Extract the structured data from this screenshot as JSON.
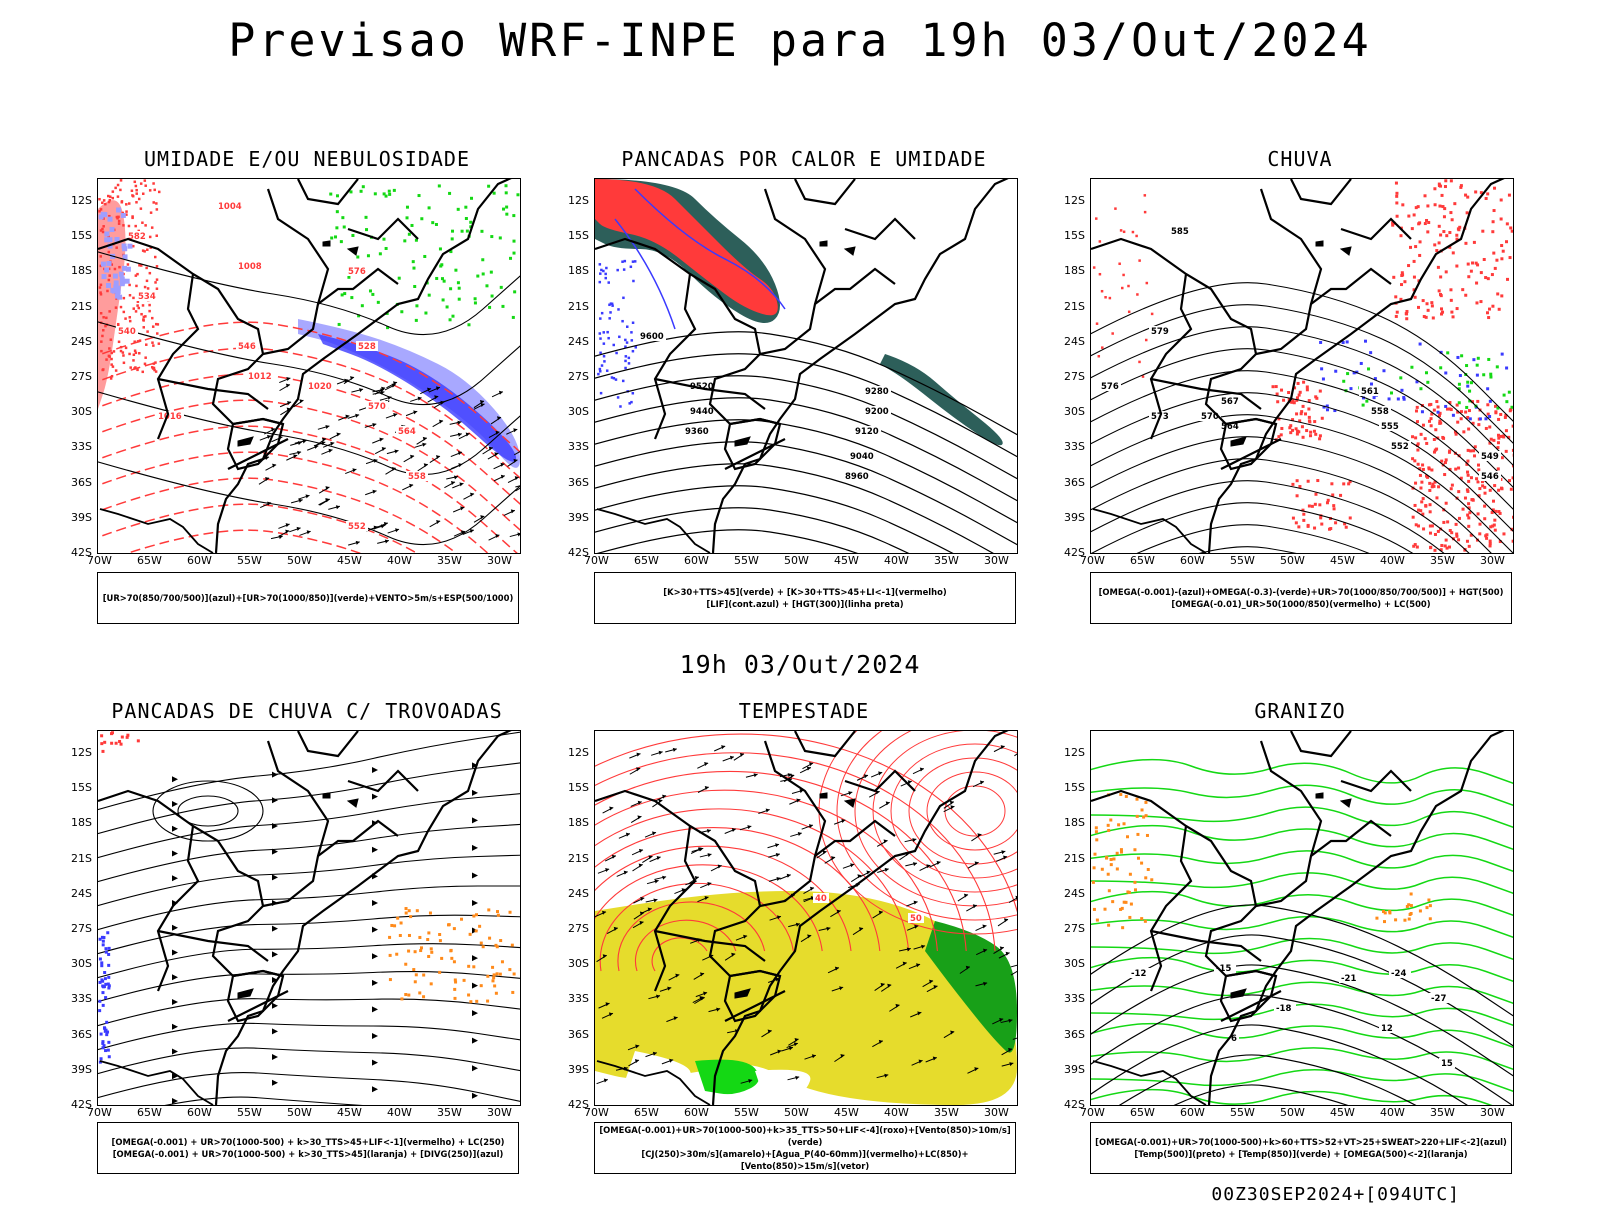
{
  "header": {
    "title": "Previsao WRF-INPE  para 19h 03/Out/2024",
    "subtitle": "19h 03/Out/2024",
    "footer": "00Z30SEP2024+[094UTC]"
  },
  "axes": {
    "lat_labels": [
      "12S",
      "15S",
      "18S",
      "21S",
      "24S",
      "27S",
      "30S",
      "33S",
      "36S",
      "39S",
      "42S"
    ],
    "lon_labels": [
      "70W",
      "65W",
      "60W",
      "55W",
      "50W",
      "45W",
      "40W",
      "35W",
      "30W"
    ]
  },
  "colors": {
    "blue": "#3a3aff",
    "lavender": "#9e9eff",
    "green": "#14d814",
    "red": "#ff3a3a",
    "dark_teal": "#2d5f5a",
    "orange": "#ff8a1a",
    "yellow": "#e6dc2c",
    "dark_green": "#18a018"
  },
  "panels": [
    {
      "id": "umidade",
      "title": "UMIDADE E/OU NEBULOSIDADE",
      "legend": [
        "[UR>70(850/700/500)](azul)+[UR>70(1000/850)](verde)+VENTO>5m/s+ESP(500/1000)"
      ],
      "contour_labels": [
        "1004",
        "1008",
        "1012",
        "1016",
        "1020",
        "570",
        "564",
        "558",
        "552",
        "546",
        "540",
        "534",
        "528",
        "576",
        "582"
      ]
    },
    {
      "id": "pancadas-calor",
      "title": "PANCADAS POR CALOR E UMIDADE",
      "legend": [
        "[K>30+TTS>45](verde) + [K>30+TTS>45+LI<-1](vermelho)",
        "[LIF](cont.azul) + [HGT(300)](linha preta)"
      ],
      "contour_labels": [
        "9600",
        "9520",
        "9440",
        "9360",
        "9280",
        "9200",
        "9120",
        "9040",
        "8960"
      ]
    },
    {
      "id": "chuva",
      "title": "CHUVA",
      "legend": [
        "[OMEGA(-0.001)-(azul)+OMEGA(-0.3)-(verde)+UR>70(1000/850/700/500)] + HGT(500)",
        "[OMEGA(-0.01)_UR>50(1000/850)(vermelho) + LC(500)"
      ],
      "contour_labels": [
        "585",
        "579",
        "576",
        "573",
        "570",
        "567",
        "564",
        "561",
        "558",
        "555",
        "552",
        "549",
        "546"
      ]
    },
    {
      "id": "pancadas-trovoadas",
      "title": "PANCADAS DE CHUVA C/ TROVOADAS",
      "legend": [
        "[OMEGA(-0.001) + UR>70(1000-500) + k>30_TTS>45+LIF<-1](vermelho) + LC(250)",
        "[OMEGA(-0.001) + UR>70(1000-500) + k>30_TTS>45](laranja) + [DIVG(250)](azul)"
      ],
      "contour_labels": []
    },
    {
      "id": "tempestade",
      "title": "TEMPESTADE",
      "legend": [
        "[OMEGA(-0.001)+UR>70(1000-500)+k>35_TTS>50+LIF<-4](roxo)+[Vento(850)>10m/s](verde)",
        "[CJ(250)>30m/s](amarelo)+[Agua_P(40-60mm)](vermelho)+LC(850)+[Vento(850)>15m/s](vetor)"
      ],
      "contour_labels": [
        "40",
        "50"
      ]
    },
    {
      "id": "granizo",
      "title": "GRANIZO",
      "legend": [
        "[OMEGA(-0.001)+UR>70(1000-500)+k>60+TTS>52+VT>25+SWEAT>220+LIF<-2](azul)",
        "[Temp(500)](preto) + [Temp(850)](verde) + [OMEGA(500)<-2](laranja)"
      ],
      "contour_labels": [
        "-12",
        "-15",
        "-18",
        "-21",
        "-24",
        "-27",
        "15",
        "12",
        "6"
      ]
    }
  ]
}
